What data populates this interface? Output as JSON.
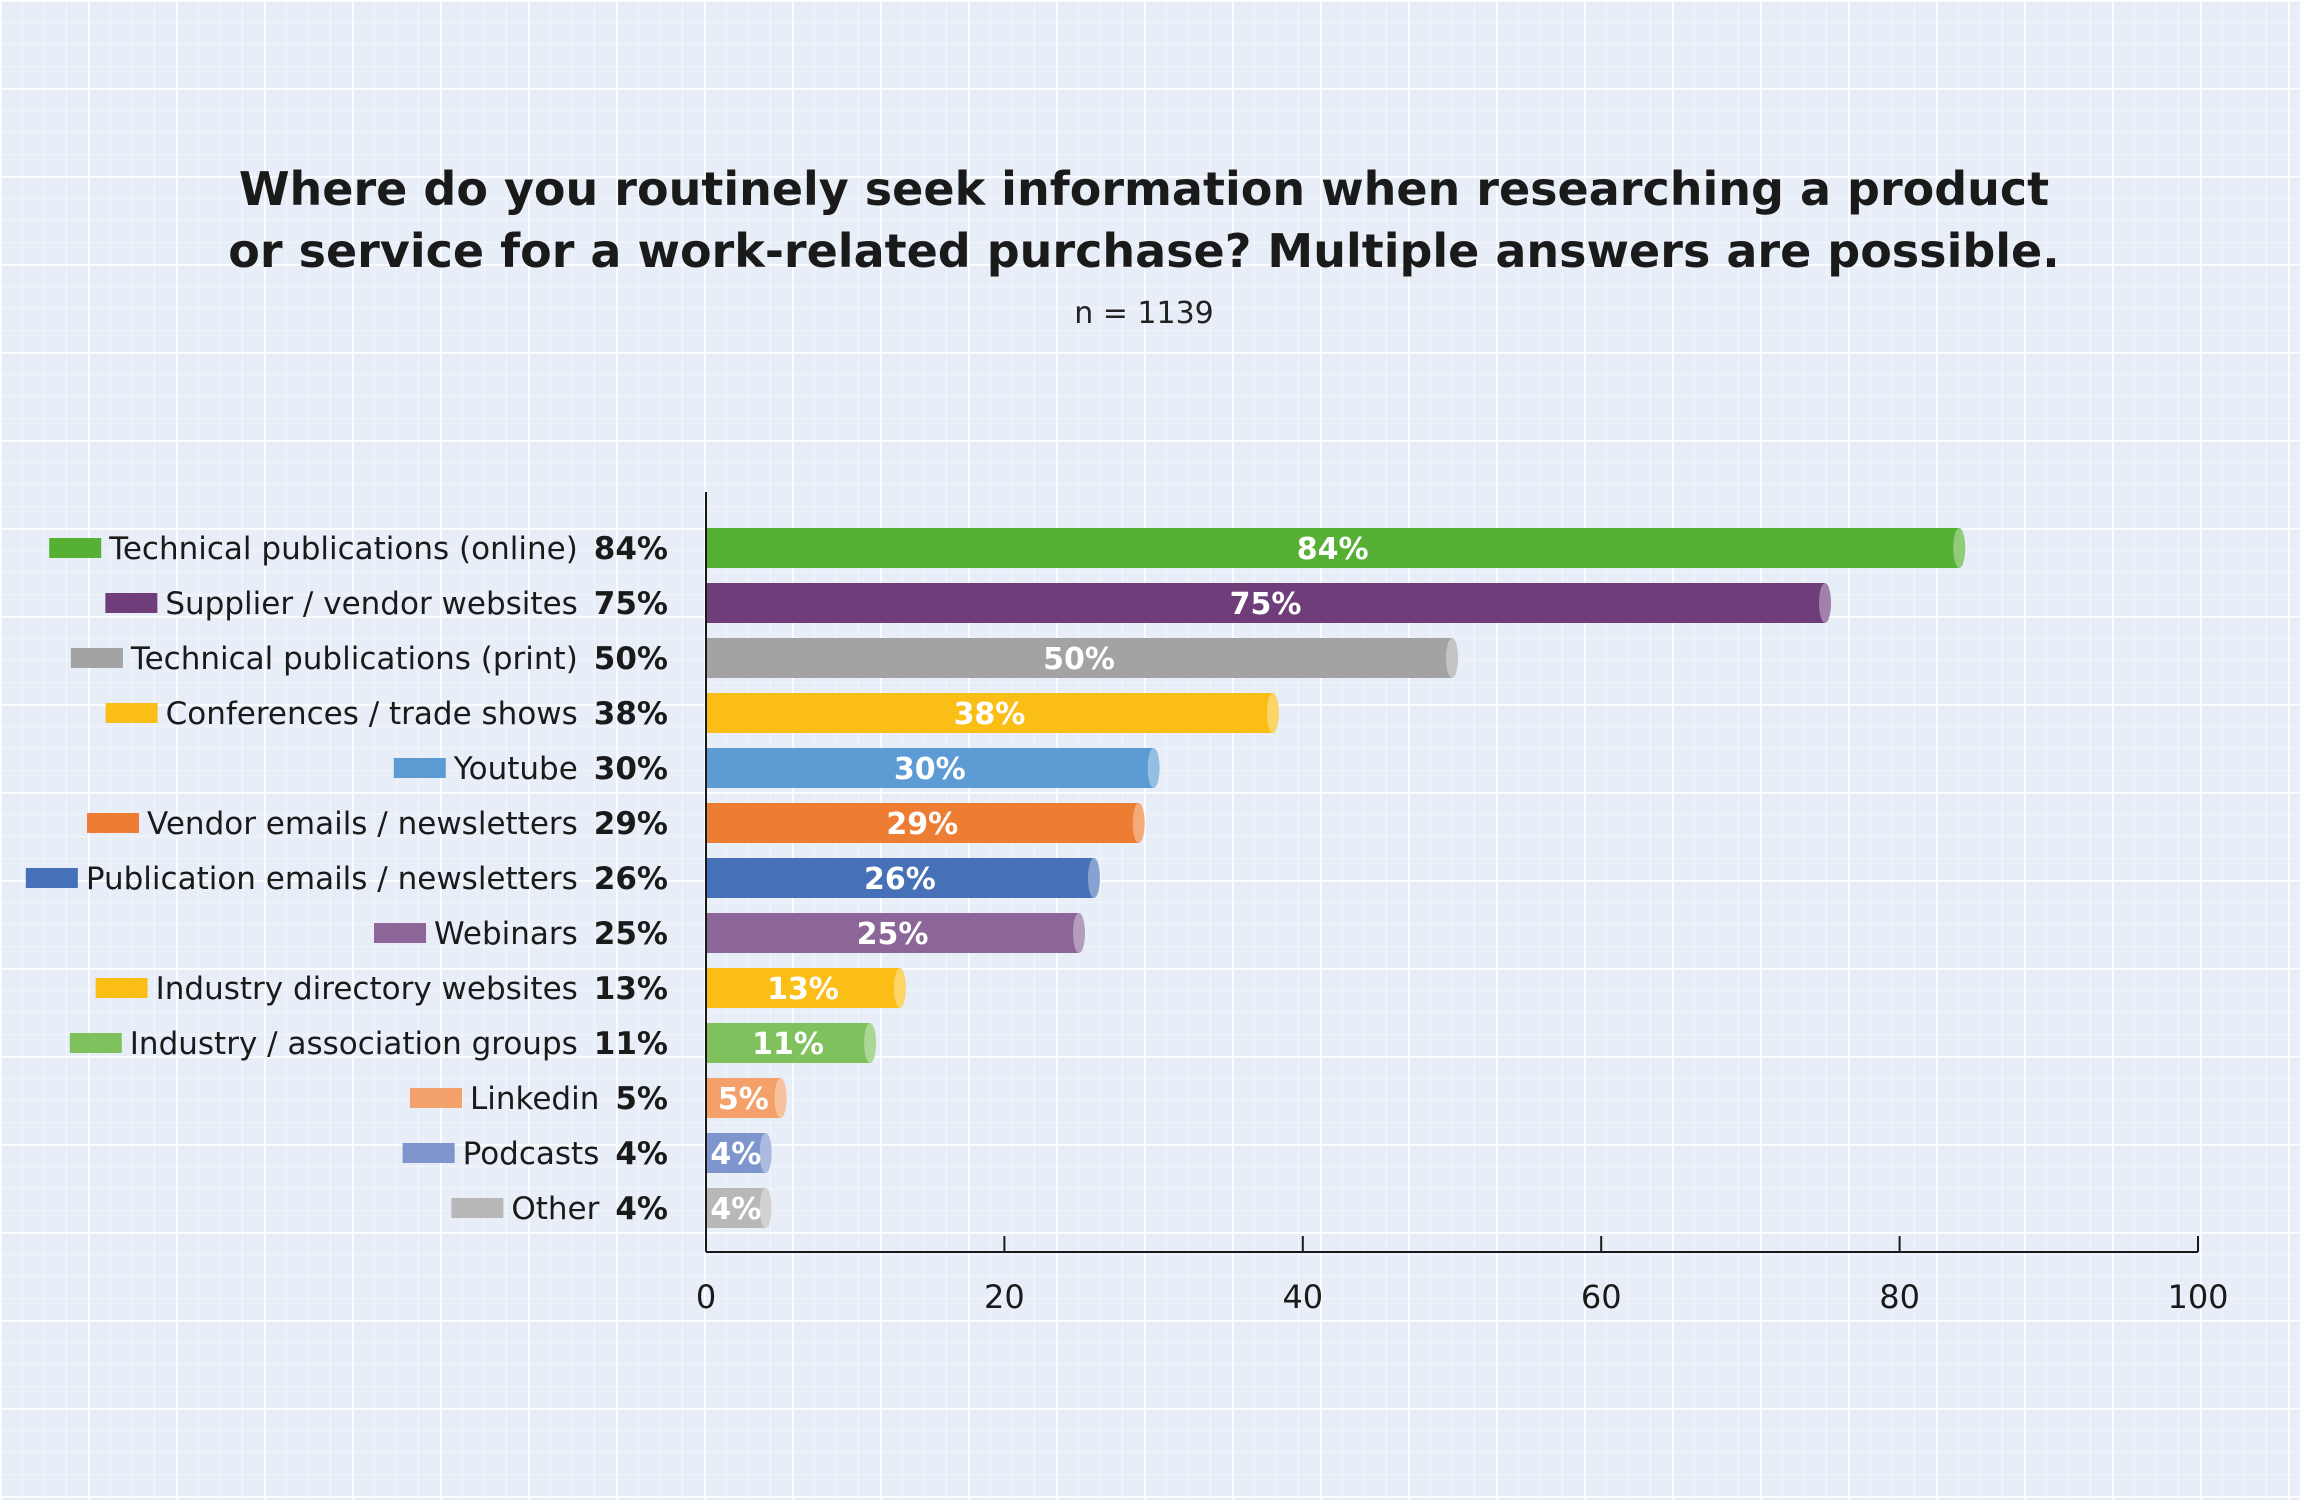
{
  "chart_data": {
    "type": "bar",
    "orientation": "horizontal",
    "title_lines": [
      "Where do you routinely seek information when researching a product",
      "or service for a work-related purchase? Multiple answers are possible."
    ],
    "subtitle": "n = 1139",
    "categories": [
      "Technical publications (online)",
      "Supplier / vendor websites",
      "Technical publications (print)",
      "Conferences / trade shows",
      "Youtube",
      "Vendor emails / newsletters",
      "Publication emails / newsletters",
      "Webinars",
      "Industry directory websites",
      "Industry / association groups",
      "Linkedin",
      "Podcasts",
      "Other"
    ],
    "values": [
      84,
      75,
      50,
      38,
      30,
      29,
      26,
      25,
      13,
      11,
      5,
      4,
      4
    ],
    "value_labels": [
      "84%",
      "75%",
      "50%",
      "38%",
      "30%",
      "29%",
      "26%",
      "25%",
      "13%",
      "11%",
      "5%",
      "4%",
      "4%"
    ],
    "colors": [
      "#55b033",
      "#6e3d7a",
      "#a3a3a3",
      "#fbbe17",
      "#5c9bd4",
      "#ee7d34",
      "#4670b8",
      "#8c6699",
      "#fbbe17",
      "#7fc15d",
      "#f4a06a",
      "#7f95cd",
      "#b8b8b8"
    ],
    "xlim": [
      0,
      100
    ],
    "xticks": [
      0,
      20,
      40,
      60,
      80,
      100
    ],
    "xlabel": "",
    "ylabel": "",
    "grid": false
  }
}
